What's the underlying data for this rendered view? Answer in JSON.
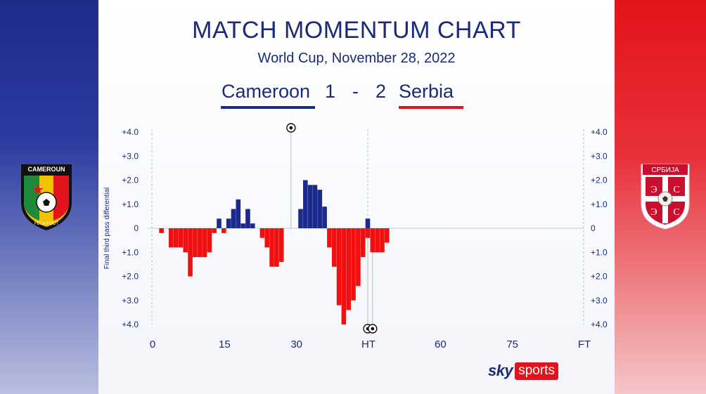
{
  "title": "MATCH MOMENTUM CHART",
  "subtitle": "World Cup, November 28, 2022",
  "score": {
    "home_team": "Cameroon",
    "home_score": "1",
    "separator": "-",
    "away_score": "2",
    "away_team": "Serbia"
  },
  "logos": {
    "home_badge_text": "CAMEROUN",
    "home_badge_bottom": "FECA FOOT",
    "away_badge_text": "СРБИЈА"
  },
  "brand": {
    "sky": "sky",
    "sports": "sports"
  },
  "colors": {
    "home": "#1b2a8c",
    "away": "#f20f0f",
    "text": "#1b2a78"
  },
  "chart_data": {
    "type": "bar",
    "ylabel": "Final third pass differential",
    "ylim": [
      -4,
      4
    ],
    "yticks": [
      {
        "value": 4,
        "label": "+4.0"
      },
      {
        "value": 3,
        "label": "+3.0"
      },
      {
        "value": 2,
        "label": "+2.0"
      },
      {
        "value": 1,
        "label": "+1.0"
      },
      {
        "value": 0,
        "label": "0"
      },
      {
        "value": -1,
        "label": "+1.0"
      },
      {
        "value": -2,
        "label": "+2.0"
      },
      {
        "value": -3,
        "label": "+3.0"
      },
      {
        "value": -4,
        "label": "+4.0"
      }
    ],
    "xlim": [
      0,
      90
    ],
    "xticks": [
      {
        "value": 0,
        "label": "0"
      },
      {
        "value": 15,
        "label": "15"
      },
      {
        "value": 30,
        "label": "30"
      },
      {
        "value": 45,
        "label": "HT"
      },
      {
        "value": 60,
        "label": "60"
      },
      {
        "value": 75,
        "label": "75"
      },
      {
        "value": 90,
        "label": "FT"
      }
    ],
    "series": [
      {
        "team": "Cameroon",
        "minutes": [
          14,
          16,
          17,
          18,
          19,
          20,
          21,
          31,
          32,
          33,
          34,
          35,
          36,
          45
        ],
        "values": [
          0.4,
          0.4,
          0.8,
          1.2,
          0.2,
          0.8,
          0.2,
          0.8,
          2.0,
          1.8,
          1.8,
          1.6,
          0.9,
          0.4
        ]
      },
      {
        "team": "Serbia",
        "minutes": [
          2,
          4,
          5,
          6,
          7,
          8,
          9,
          10,
          11,
          12,
          13,
          15,
          23,
          24,
          25,
          26,
          27,
          37,
          38,
          39,
          40,
          41,
          42,
          43,
          44,
          45,
          46,
          47,
          48,
          49
        ],
        "values": [
          -0.2,
          -0.8,
          -0.8,
          -0.8,
          -1.0,
          -2.0,
          -1.2,
          -1.2,
          -1.2,
          -1.0,
          -0.2,
          -0.2,
          -0.4,
          -0.8,
          -1.6,
          -1.6,
          -1.4,
          -0.8,
          -1.6,
          -3.2,
          -4.0,
          -3.4,
          -3.0,
          -2.4,
          -1.2,
          -0.4,
          -1.0,
          -1.0,
          -1.0,
          -0.6
        ]
      }
    ],
    "goals": [
      {
        "team": "Cameroon",
        "minute": 29
      },
      {
        "team": "Serbia",
        "minute": 45
      },
      {
        "team": "Serbia",
        "minute": 46
      }
    ]
  }
}
